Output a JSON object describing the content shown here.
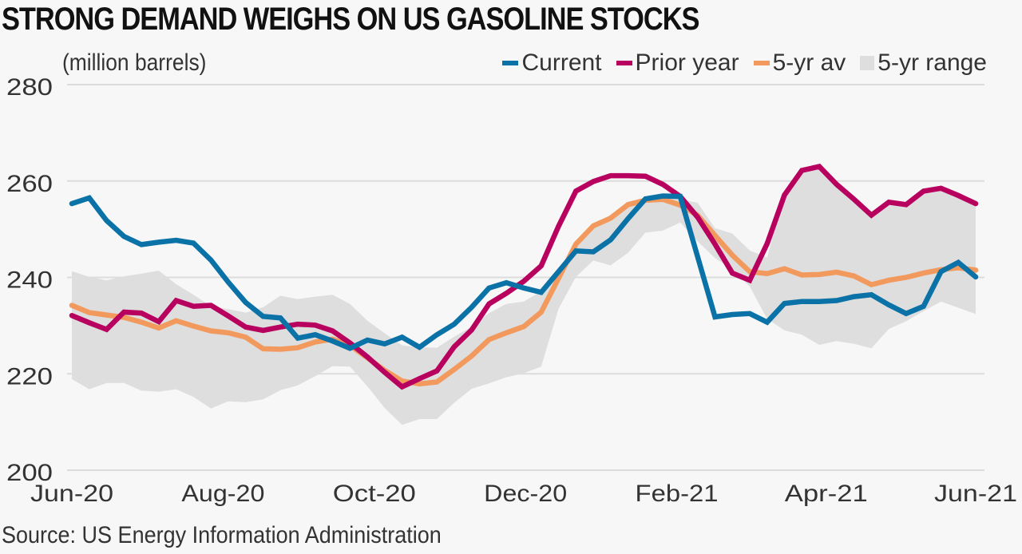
{
  "chart_data": {
    "type": "line",
    "title": "STRONG DEMAND WEIGHS ON US GASOLINE STOCKS",
    "ylabel": "(million barrels)",
    "xlabel": "",
    "source": "Source: US Energy Information Administration",
    "ylim": [
      200,
      280
    ],
    "yticks": [
      "200",
      "220",
      "240",
      "260",
      "280"
    ],
    "ytick_values": [
      200,
      220,
      240,
      260,
      280
    ],
    "xticks": [
      {
        "label": "Jun-20",
        "index": 0
      },
      {
        "label": "Aug-20",
        "index": 8.7
      },
      {
        "label": "Oct-20",
        "index": 17.4
      },
      {
        "label": "Dec-20",
        "index": 26.1
      },
      {
        "label": "Feb-21",
        "index": 34.8
      },
      {
        "label": "Apr-21",
        "index": 43.4
      },
      {
        "label": "Jun-21",
        "index": 52
      }
    ],
    "grid": true,
    "legend_position": "top-right",
    "x_count": 53,
    "colors": {
      "current": "#0a72a6",
      "prior": "#b8005e",
      "avg": "#f2995e",
      "range": "#dedede",
      "grid": "#dcdcdc"
    },
    "legend": [
      {
        "key": "current",
        "label": "Current",
        "kind": "line"
      },
      {
        "key": "prior",
        "label": "Prior year",
        "kind": "line"
      },
      {
        "key": "avg",
        "label": "5-yr av",
        "kind": "line"
      },
      {
        "key": "range",
        "label": "5-yr range",
        "kind": "area"
      }
    ],
    "series": [
      {
        "key": "current",
        "name": "Current",
        "values": [
          255.3,
          256.5,
          251.8,
          248.5,
          246.8,
          247.3,
          247.7,
          247.1,
          243.6,
          239.0,
          234.8,
          231.9,
          231.6,
          227.4,
          228.1,
          226.8,
          225.3,
          227.0,
          226.2,
          227.6,
          225.5,
          228.1,
          230.3,
          233.8,
          237.8,
          238.9,
          237.8,
          236.9,
          241.2,
          245.5,
          245.3,
          247.8,
          252.2,
          256.3,
          256.9,
          256.8,
          244.3,
          231.8,
          232.3,
          232.5,
          230.7,
          234.6,
          235.0,
          235.0,
          235.2,
          236.0,
          236.4,
          234.3,
          232.5,
          234.0,
          241.2,
          243.1,
          240.1
        ]
      },
      {
        "key": "prior",
        "name": "Prior year",
        "values": [
          232.1,
          230.6,
          229.2,
          232.8,
          232.6,
          230.8,
          235.2,
          234.0,
          234.2,
          232.0,
          229.7,
          229.0,
          229.7,
          230.3,
          230.1,
          228.9,
          226.4,
          223.5,
          220.3,
          217.3,
          219.0,
          220.6,
          225.6,
          229.1,
          234.5,
          236.7,
          239.2,
          242.4,
          250.6,
          257.9,
          259.9,
          261.1,
          261.1,
          261.0,
          259.3,
          256.8,
          252.5,
          246.9,
          240.9,
          239.4,
          247.0,
          257.1,
          262.2,
          263.0,
          259.3,
          256.2,
          252.9,
          255.6,
          255.1,
          257.9,
          258.5,
          257.0,
          255.3
        ]
      },
      {
        "key": "avg",
        "name": "5-yr av",
        "values": [
          234.2,
          232.7,
          232.2,
          231.7,
          230.7,
          229.5,
          231.0,
          229.9,
          228.9,
          228.5,
          227.6,
          225.2,
          225.1,
          225.4,
          226.6,
          227.2,
          225.9,
          223.3,
          220.7,
          218.5,
          217.9,
          218.3,
          220.9,
          223.7,
          227.1,
          228.5,
          229.8,
          232.8,
          239.8,
          246.9,
          250.7,
          252.3,
          255.1,
          256.0,
          256.2,
          255.0,
          252.9,
          248.7,
          244.6,
          241.2,
          240.8,
          241.8,
          240.5,
          240.6,
          241.1,
          240.3,
          238.5,
          239.4,
          240.0,
          240.9,
          241.6,
          242.0,
          241.5
        ]
      },
      {
        "key": "range_max",
        "name": "5-yr range max",
        "values": [
          241.3,
          240.1,
          239.4,
          240.2,
          240.8,
          241.4,
          238.6,
          236.4,
          234.0,
          233.4,
          232.7,
          233.8,
          236.2,
          235.5,
          236.0,
          236.4,
          234.5,
          231.0,
          228.4,
          225.9,
          225.5,
          225.4,
          227.7,
          229.8,
          232.6,
          234.5,
          235.0,
          237.1,
          240.9,
          246.0,
          250.4,
          252.6,
          255.0,
          256.3,
          256.6,
          256.2,
          255.5,
          250.2,
          249.1,
          245.6,
          244.1,
          257.9,
          262.0,
          263.0,
          259.3,
          256.2,
          252.9,
          255.6,
          255.1,
          257.9,
          258.5,
          257.0,
          255.3
        ]
      },
      {
        "key": "range_min",
        "name": "5-yr range min",
        "values": [
          218.9,
          216.8,
          218.1,
          218.1,
          216.5,
          216.3,
          216.8,
          215.2,
          212.8,
          214.3,
          214.1,
          214.7,
          216.6,
          217.6,
          219.5,
          221.6,
          221.5,
          217.4,
          212.9,
          209.4,
          210.6,
          210.6,
          214.0,
          216.9,
          218.0,
          219.3,
          220.1,
          221.5,
          233.5,
          240.1,
          243.5,
          242.5,
          245.1,
          249.3,
          249.7,
          251.4,
          247.5,
          244.0,
          241.6,
          238.1,
          231.4,
          229.0,
          228.1,
          226.0,
          226.8,
          226.2,
          225.3,
          229.3,
          230.9,
          233.0,
          235.0,
          233.7,
          232.4
        ]
      }
    ]
  }
}
